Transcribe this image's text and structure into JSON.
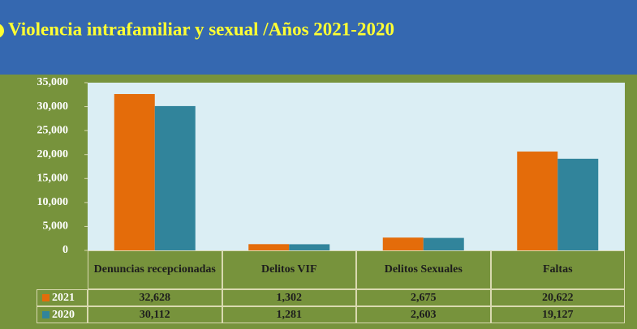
{
  "chart_data": {
    "type": "bar",
    "title": "Violencia intrafamiliar y sexual /Años  2021-2020",
    "categories": [
      "Denuncias recepcionadas",
      "Delitos VIF",
      "Delitos Sexuales",
      "Faltas"
    ],
    "series": [
      {
        "name": "2021",
        "color": "#e46c0a",
        "values": [
          32628,
          1302,
          2675,
          20622
        ],
        "value_labels": [
          "32,628",
          "1,302",
          "2,675",
          "20,622"
        ]
      },
      {
        "name": "2020",
        "color": "#31849b",
        "values": [
          30112,
          1281,
          2603,
          19127
        ],
        "value_labels": [
          "30,112",
          "1,281",
          "2,603",
          "19,127"
        ]
      }
    ],
    "ylim": [
      0,
      35000
    ],
    "yticks": [
      0,
      {
        "value": 5000,
        "label": "5,000"
      },
      {
        "value": 10000,
        "label": "10,000"
      },
      {
        "value": 15000,
        "label": "15,000"
      },
      {
        "value": 20000,
        "label": "20,000"
      },
      {
        "value": 25000,
        "label": "25,000"
      },
      {
        "value": 30000,
        "label": "30,000"
      },
      {
        "value": 35000,
        "label": "35,000"
      }
    ]
  }
}
